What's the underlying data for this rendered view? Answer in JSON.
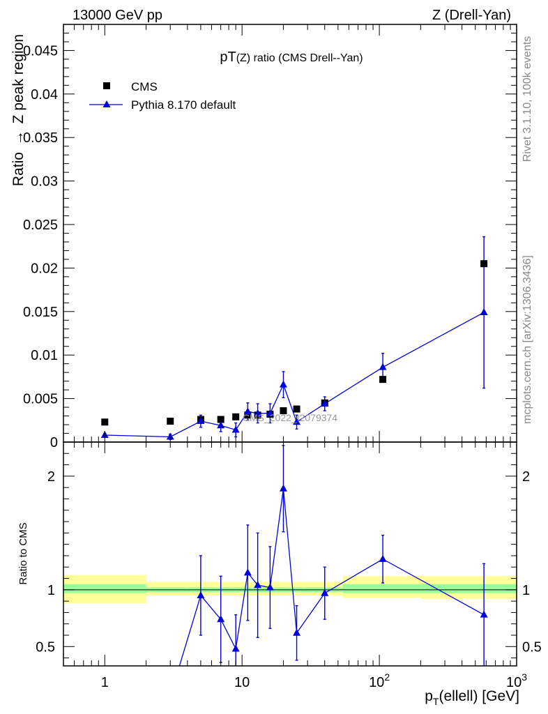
{
  "header": {
    "left": "13000 GeV pp",
    "right": "Z (Drell-Yan)"
  },
  "side": {
    "rivet": "Rivet 3.1.10,  100k events",
    "mcplots": "mcplots.cern.ch [arXiv:1306.3436]"
  },
  "chart_data": {
    "type": "scatter",
    "title": "pT(Z) ratio (CMS Drell--Yan)",
    "title_main": "pT",
    "title_rest": "(Z) ratio (CMS Drell--Yan)",
    "watermark": "CMS_2022_I2079374",
    "xlabel": "p_T(ellell) [GeV]",
    "xlabel_p": "p",
    "xlabel_sub": "T",
    "xlabel_rest": "(ellell) [GeV]",
    "ylabel": "Ratio -> Z peak region",
    "ylabel_main": "Ratio",
    "ylabel_arrow": "→",
    "ylabel_rest": "Z peak region",
    "ratio_ylabel": "Ratio to CMS",
    "xscale": "log",
    "xlim": [
      0.5,
      1000
    ],
    "ylim": [
      0,
      0.048
    ],
    "ratio_ylim": [
      0.33,
      2.3
    ],
    "legend_placement": "top-left",
    "x_tick_labels": [
      {
        "v": 1,
        "text": "1"
      },
      {
        "v": 10,
        "text": "10"
      },
      {
        "v": 100,
        "text": "10",
        "sup": "2"
      },
      {
        "v": 1000,
        "text": "10",
        "sup": "3"
      }
    ],
    "y_tick_labels": [
      {
        "v": 0,
        "text": "0"
      },
      {
        "v": 0.005,
        "text": "0.005"
      },
      {
        "v": 0.01,
        "text": "0.01"
      },
      {
        "v": 0.015,
        "text": "0.015"
      },
      {
        "v": 0.02,
        "text": "0.02"
      },
      {
        "v": 0.025,
        "text": "0.025"
      },
      {
        "v": 0.03,
        "text": "0.03"
      },
      {
        "v": 0.035,
        "text": "0.035"
      },
      {
        "v": 0.04,
        "text": "0.04"
      },
      {
        "v": 0.045,
        "text": "0.045"
      }
    ],
    "ratio_tick_labels": [
      {
        "v": 0.5,
        "text": "0.5"
      },
      {
        "v": 1,
        "text": "1"
      },
      {
        "v": 2,
        "text": "2"
      }
    ],
    "bins": [
      {
        "lo": 0.5,
        "hi": 2
      },
      {
        "lo": 2,
        "hi": 4
      },
      {
        "lo": 4,
        "hi": 6
      },
      {
        "lo": 6,
        "hi": 8
      },
      {
        "lo": 8,
        "hi": 10
      },
      {
        "lo": 10,
        "hi": 12
      },
      {
        "lo": 12,
        "hi": 14
      },
      {
        "lo": 14,
        "hi": 18
      },
      {
        "lo": 18,
        "hi": 22
      },
      {
        "lo": 22,
        "hi": 28
      },
      {
        "lo": 28,
        "hi": 54
      },
      {
        "lo": 54,
        "hi": 200
      },
      {
        "lo": 200,
        "hi": 1000
      }
    ],
    "ratio_band_yellow": [
      [
        0.88,
        1.13
      ],
      [
        0.95,
        1.07
      ],
      [
        0.95,
        1.07
      ],
      [
        0.95,
        1.07
      ],
      [
        0.95,
        1.07
      ],
      [
        0.95,
        1.07
      ],
      [
        0.95,
        1.07
      ],
      [
        0.95,
        1.07
      ],
      [
        0.95,
        1.07
      ],
      [
        0.95,
        1.07
      ],
      [
        0.95,
        1.07
      ],
      [
        0.93,
        1.12
      ],
      [
        0.92,
        1.12
      ]
    ],
    "ratio_band_green": [
      [
        0.97,
        1.05
      ],
      [
        0.98,
        1.02
      ],
      [
        0.98,
        1.02
      ],
      [
        0.98,
        1.02
      ],
      [
        0.98,
        1.02
      ],
      [
        0.98,
        1.02
      ],
      [
        0.98,
        1.02
      ],
      [
        0.98,
        1.02
      ],
      [
        0.98,
        1.02
      ],
      [
        0.98,
        1.02
      ],
      [
        0.98,
        1.02
      ],
      [
        0.97,
        1.05
      ],
      [
        0.97,
        1.05
      ]
    ],
    "series": [
      {
        "name": "CMS",
        "marker": "square",
        "color": "#000000",
        "x": [
          1,
          3,
          5,
          7,
          9,
          11,
          13,
          16,
          20,
          25,
          40,
          106,
          578
        ],
        "y": [
          0.0023,
          0.0024,
          0.0026,
          0.0026,
          0.0029,
          0.0031,
          0.0031,
          0.0032,
          0.0036,
          0.0038,
          0.0045,
          0.0072,
          0.0205
        ]
      },
      {
        "name": "Pythia 8.170 default",
        "marker": "triangle",
        "color": "#0000dd",
        "x": [
          1,
          3,
          5,
          7,
          9,
          11,
          13,
          16,
          20,
          25,
          40,
          106,
          578
        ],
        "y": [
          0.0008,
          0.0006,
          0.0024,
          0.0019,
          0.0014,
          0.0035,
          0.0033,
          0.0033,
          0.0066,
          0.0023,
          0.0044,
          0.0086,
          0.0149
        ],
        "err": [
          0.0002,
          0.0003,
          0.0007,
          0.0007,
          0.0008,
          0.001,
          0.0011,
          0.0011,
          0.0015,
          0.0008,
          0.0008,
          0.0016,
          0.0087
        ]
      }
    ],
    "ratio_series": {
      "name": "Pythia 8.170 default",
      "color": "#0000dd",
      "x": [
        3.5,
        5,
        7,
        9,
        11,
        13,
        16,
        20,
        25,
        40,
        106,
        578
      ],
      "y": [
        0.33,
        0.95,
        0.74,
        0.48,
        1.15,
        1.04,
        1.02,
        1.89,
        0.62,
        0.97,
        1.27,
        0.78
      ],
      "err": [
        0.0,
        0.35,
        0.38,
        0.3,
        0.42,
        0.46,
        0.36,
        0.38,
        0.24,
        0.23,
        0.21,
        0.45
      ]
    }
  }
}
